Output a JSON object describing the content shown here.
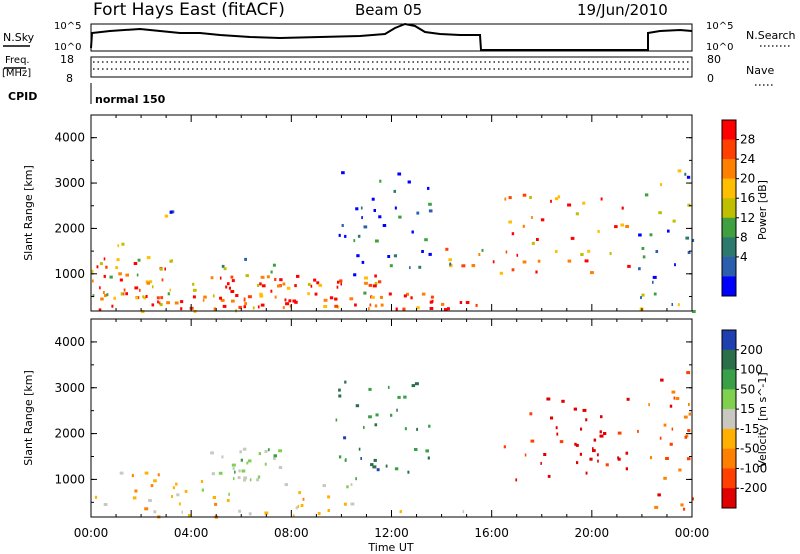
{
  "header": {
    "radar": "Fort Hays East (fitACF)",
    "beam": "Beam 05",
    "date": "19/Jun/2010"
  },
  "summary": {
    "nsky_label": "N.Sky",
    "nsky_ticks": [
      "10^5",
      "10^0"
    ],
    "nsearch_label": "N.Search",
    "freq_label": "Freq.",
    "freq_unit": "[MHz]",
    "freq_ticks": [
      "18",
      "8"
    ],
    "nave_label": "Nave",
    "nave_ticks": [
      "80",
      "0"
    ],
    "cpid_label": "CPID",
    "cpid_value": "normal 150"
  },
  "axes": {
    "ylabel": "Slant Range [km]",
    "xlabel": "Time UT",
    "yticks": [
      "4000",
      "3000",
      "2000",
      "1000"
    ],
    "xticks": [
      "00:00",
      "04:00",
      "08:00",
      "12:00",
      "16:00",
      "20:00",
      "00:00"
    ]
  },
  "power_scale": {
    "title": "Power [dB]",
    "labels": [
      "28",
      "24",
      "20",
      "16",
      "12",
      "8",
      "4"
    ],
    "colors": [
      "#ff0000",
      "#ff4000",
      "#ff8000",
      "#ffbf00",
      "#bfbf00",
      "#40a040",
      "#2c7a6e",
      "#2a5fae",
      "#0000ff"
    ]
  },
  "velocity_scale": {
    "title": "Velocity [m s^-1]",
    "labels": [
      "200",
      "100",
      "50",
      "15",
      "-15",
      "-50",
      "-100",
      "-200"
    ],
    "colors": [
      "#1f3fb0",
      "#2a6f4a",
      "#3aa048",
      "#80d050",
      "#c8c8c0",
      "#ffb000",
      "#ff8000",
      "#ff4000",
      "#e00000"
    ]
  },
  "chart_data": [
    {
      "type": "heatmap",
      "title": "Power [dB]",
      "xlabel": "Time UT",
      "ylabel": "Slant Range [km]",
      "xlim": [
        0,
        24
      ],
      "ylim": [
        180,
        4500
      ],
      "zlim": [
        3,
        30
      ],
      "regions": [
        {
          "t": [
            0,
            15.6
          ],
          "r": [
            200,
            600
          ],
          "value": 27
        },
        {
          "t": [
            0,
            3.2
          ],
          "r": [
            500,
            1400
          ],
          "value": 22
        },
        {
          "t": [
            0.5,
            1.5
          ],
          "r": [
            1400,
            1900
          ],
          "value": 13
        },
        {
          "t": [
            2.5,
            3.8
          ],
          "r": [
            2200,
            2700
          ],
          "value": 13
        },
        {
          "t": [
            4.0,
            11.5
          ],
          "r": [
            600,
            1000
          ],
          "value": 24
        },
        {
          "t": [
            5.0,
            7.5
          ],
          "r": [
            1000,
            1500
          ],
          "value": 8
        },
        {
          "t": [
            9.5,
            13.5
          ],
          "r": [
            1000,
            3300
          ],
          "value": 5
        },
        {
          "t": [
            14.0,
            15.6
          ],
          "r": [
            1200,
            1600
          ],
          "value": 16
        },
        {
          "t": [
            16.0,
            21.5
          ],
          "r": [
            1000,
            2800
          ],
          "value": 25
        },
        {
          "t": [
            21.8,
            24.0
          ],
          "r": [
            200,
            3400
          ],
          "value": 12
        }
      ]
    },
    {
      "type": "heatmap",
      "title": "Velocity [m s^-1]",
      "xlabel": "Time UT",
      "ylabel": "Slant Range [km]",
      "xlim": [
        0,
        24
      ],
      "ylim": [
        180,
        4500
      ],
      "zlim": [
        -250,
        250
      ],
      "regions": [
        {
          "t": [
            0,
            15.6
          ],
          "r": [
            200,
            600
          ],
          "value": -50
        },
        {
          "t": [
            0,
            3.2
          ],
          "r": [
            500,
            1300
          ],
          "value": -60
        },
        {
          "t": [
            3.0,
            11.5
          ],
          "r": [
            600,
            1000
          ],
          "value": 0
        },
        {
          "t": [
            4.5,
            7.5
          ],
          "r": [
            1000,
            1700
          ],
          "value": 40
        },
        {
          "t": [
            9.5,
            13.5
          ],
          "r": [
            1000,
            3300
          ],
          "value": 150
        },
        {
          "t": [
            16.0,
            21.5
          ],
          "r": [
            1000,
            2800
          ],
          "value": -220
        },
        {
          "t": [
            21.8,
            24.0
          ],
          "r": [
            200,
            3400
          ],
          "value": -150
        }
      ]
    }
  ]
}
